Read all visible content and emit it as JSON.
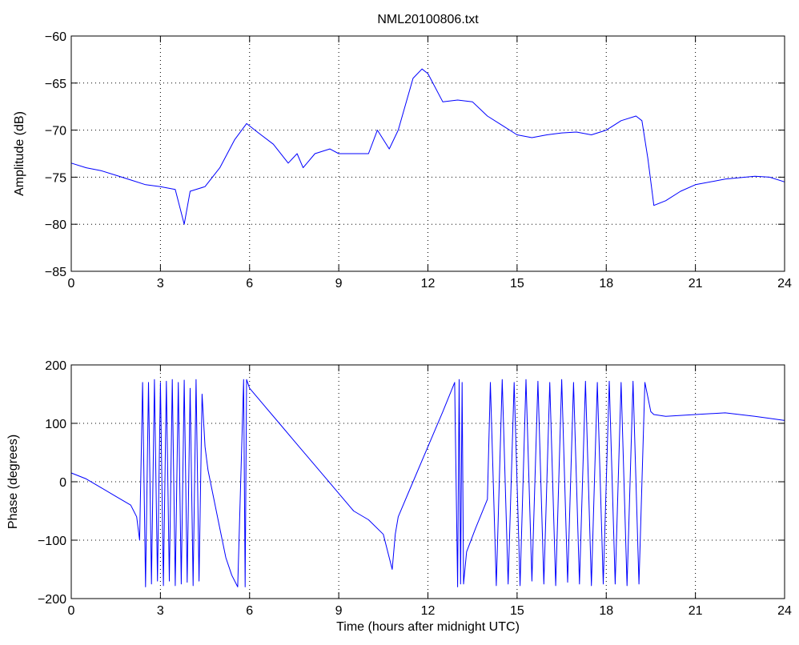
{
  "figure": {
    "title": "NML20100806.txt"
  },
  "colors": {
    "series": "#0000ff",
    "axes": "#000000",
    "grid": "#000000"
  },
  "chart_data": [
    {
      "type": "line",
      "title": "NML20100806.txt",
      "xlabel": "",
      "ylabel": "Amplitude (dB)",
      "xlim": [
        0,
        24
      ],
      "ylim": [
        -85,
        -60
      ],
      "xticks": [
        0,
        3,
        6,
        9,
        12,
        15,
        18,
        21,
        24
      ],
      "yticks": [
        -85,
        -80,
        -75,
        -70,
        -65,
        -60
      ],
      "grid": true,
      "series": [
        {
          "x": [
            0,
            0.5,
            1,
            1.5,
            2,
            2.5,
            3,
            3.5,
            3.8,
            4,
            4.5,
            5,
            5.5,
            5.9,
            6.3,
            6.8,
            7.3,
            7.6,
            7.8,
            8.2,
            8.7,
            9,
            9.5,
            10,
            10.3,
            10.7,
            11,
            11.5,
            11.8,
            12,
            12.5,
            13,
            13.5,
            14,
            14.5,
            15,
            15.5,
            16,
            16.5,
            17,
            17.5,
            18,
            18.5,
            19,
            19.2,
            19.4,
            19.6,
            20,
            20.5,
            21,
            22,
            23,
            23.5,
            24
          ],
          "y": [
            -73.5,
            -74,
            -74.3,
            -74.8,
            -75.3,
            -75.8,
            -76,
            -76.3,
            -80,
            -76.5,
            -76,
            -74,
            -71,
            -69.3,
            -70.3,
            -71.5,
            -73.5,
            -72.5,
            -74,
            -72.5,
            -72,
            -72.5,
            -72.5,
            -72.5,
            -70,
            -72,
            -70,
            -64.5,
            -63.5,
            -64,
            -67,
            -66.8,
            -67,
            -68.5,
            -69.5,
            -70.5,
            -70.8,
            -70.5,
            -70.3,
            -70.2,
            -70.5,
            -70,
            -69,
            -68.5,
            -69,
            -73,
            -78,
            -77.5,
            -76.5,
            -75.8,
            -75.2,
            -74.9,
            -75,
            -75.5
          ]
        }
      ]
    },
    {
      "type": "line",
      "title": "",
      "xlabel": "Time (hours after midnight UTC)",
      "ylabel": "Phase (degrees)",
      "xlim": [
        0,
        24
      ],
      "ylim": [
        -200,
        200
      ],
      "xticks": [
        0,
        3,
        6,
        9,
        12,
        15,
        18,
        21,
        24
      ],
      "yticks": [
        -200,
        -100,
        0,
        100,
        200
      ],
      "grid": true,
      "series": [
        {
          "x": [
            0,
            0.5,
            1,
            1.5,
            2,
            2.2,
            2.3,
            2.4,
            2.5,
            2.6,
            2.7,
            2.8,
            2.9,
            3.0,
            3.1,
            3.2,
            3.3,
            3.4,
            3.5,
            3.6,
            3.7,
            3.8,
            3.9,
            4.0,
            4.1,
            4.2,
            4.3,
            4.4,
            4.5,
            4.6,
            4.8,
            5,
            5.2,
            5.4,
            5.6,
            5.8,
            5.85,
            5.9,
            6,
            6.5,
            7,
            7.5,
            8,
            8.5,
            9,
            9.5,
            10,
            10.5,
            10.8,
            10.9,
            11,
            11.5,
            12,
            12.5,
            12.9,
            13.0,
            13.05,
            13.1,
            13.15,
            13.2,
            13.3,
            13.6,
            14,
            14.1,
            14.3,
            14.5,
            14.7,
            14.9,
            15.1,
            15.3,
            15.5,
            15.7,
            15.9,
            16.1,
            16.3,
            16.5,
            16.7,
            16.9,
            17.1,
            17.3,
            17.5,
            17.7,
            17.9,
            18.1,
            18.3,
            18.5,
            18.7,
            18.9,
            19.1,
            19.3,
            19.5,
            19.6,
            20,
            21,
            22,
            23,
            24
          ],
          "y": [
            15,
            5,
            -10,
            -25,
            -40,
            -60,
            -100,
            170,
            -180,
            170,
            -175,
            175,
            -170,
            170,
            -178,
            172,
            -170,
            175,
            -178,
            170,
            -175,
            174,
            -172,
            160,
            -178,
            175,
            -170,
            150,
            60,
            20,
            -30,
            -80,
            -130,
            -160,
            -180,
            175,
            -180,
            175,
            160,
            130,
            100,
            70,
            40,
            10,
            -20,
            -50,
            -65,
            -90,
            -150,
            -90,
            -60,
            0,
            60,
            120,
            170,
            -180,
            175,
            -175,
            170,
            -175,
            -120,
            -80,
            -30,
            170,
            -178,
            175,
            -175,
            170,
            -178,
            175,
            -170,
            172,
            -175,
            170,
            -178,
            175,
            -172,
            170,
            -175,
            172,
            -178,
            170,
            -175,
            172,
            -175,
            170,
            -178,
            172,
            -175,
            170,
            120,
            115,
            112,
            115,
            118,
            112,
            105
          ]
        }
      ]
    }
  ]
}
